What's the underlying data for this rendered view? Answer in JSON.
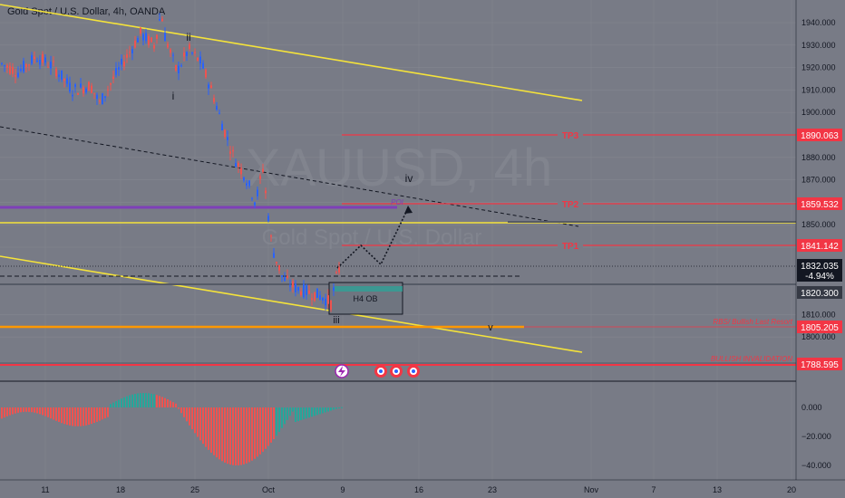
{
  "header": {
    "symbol_title": "Gold Spot / U.S. Dollar, 4h, OANDA"
  },
  "watermark": {
    "ticker": "XAUUSD, 4h",
    "name": "Gold Spot / U.S. Dollar"
  },
  "price_axis": {
    "ticks": [
      "1940.000",
      "1930.000",
      "1920.000",
      "1910.000",
      "1900.000",
      "1880.000",
      "1870.000",
      "1850.000",
      "1810.000",
      "1800.000"
    ],
    "tick_values": [
      1940,
      1930,
      1920,
      1910,
      1900,
      1880,
      1870,
      1850,
      1810,
      1800
    ]
  },
  "price_labels": {
    "tp3": "1890.063",
    "tp2": "1859.532",
    "tp1": "1841.142",
    "current_price": "1832.035",
    "current_change": "-4.94%",
    "level_1820": "1820.300",
    "rbs": "1805.205",
    "invalidation": "1788.595"
  },
  "line_labels": {
    "tp3": "TP3",
    "tp2": "TP2",
    "tp1": "TP1",
    "poi": "POI",
    "h4_ob": "H4 OB",
    "rbs": "RBS/ Bullish Last Resort",
    "invalidation": "BULLISH INVALIDATION"
  },
  "wave_labels": {
    "i": "i",
    "ii": "ii",
    "iii": "iii",
    "iv": "iv",
    "v": "v"
  },
  "oscillator_axis": {
    "ticks": [
      "0.000",
      "−20.000",
      "−40.000"
    ],
    "tick_values": [
      0,
      -20,
      -40
    ]
  },
  "time_axis": {
    "ticks": [
      "11",
      "18",
      "25",
      "Oct",
      "9",
      "16",
      "23",
      "Nov",
      "7",
      "13",
      "20"
    ]
  },
  "event_markers": {
    "flash_icon": "lightning-icon",
    "flag_icon": "us-flag-icon"
  },
  "colors": {
    "tp_red": "#f23645",
    "poi_purple": "#7e3fb8",
    "channel_yellow": "#f5e33a",
    "rbs_orange": "#ff9800",
    "bull_green": "#26a69a",
    "bear_red": "#ef5350",
    "candle_blue": "#2962ff",
    "background": "#787b86",
    "axis_bg": "#787b86"
  }
}
